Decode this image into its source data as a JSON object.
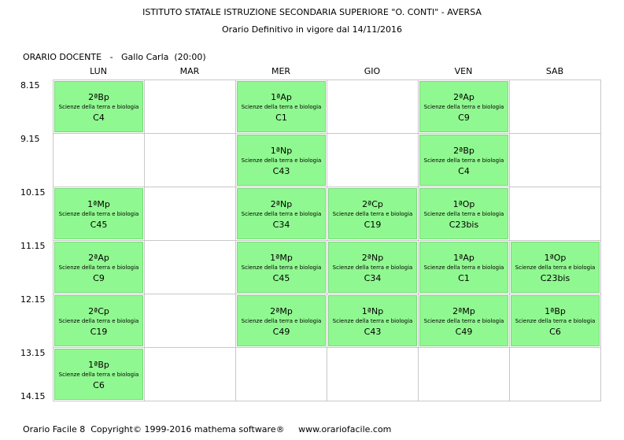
{
  "header": {
    "school": "ISTITUTO STATALE ISTRUZIONE SECONDARIA SUPERIORE \"O. CONTI\" - AVERSA",
    "subtitle": "Orario Definitivo in vigore dal 14/11/2016"
  },
  "teacher_line": "ORARIO DOCENTE   -   Gallo Carla  (20:00)",
  "days": [
    "LUN",
    "MAR",
    "MER",
    "GIO",
    "VEN",
    "SAB"
  ],
  "times": [
    "8.15",
    "9.15",
    "10.15",
    "11.15",
    "12.15",
    "13.15",
    "14.15"
  ],
  "lessons": [
    {
      "day": 0,
      "slot": 0,
      "class": "2ªBp",
      "subject": "Scienze della terra e biologia",
      "room": "C4"
    },
    {
      "day": 2,
      "slot": 0,
      "class": "1ªAp",
      "subject": "Scienze della terra e biologia",
      "room": "C1"
    },
    {
      "day": 4,
      "slot": 0,
      "class": "2ªAp",
      "subject": "Scienze della terra e biologia",
      "room": "C9"
    },
    {
      "day": 2,
      "slot": 1,
      "class": "1ªNp",
      "subject": "Scienze della terra e biologia",
      "room": "C43"
    },
    {
      "day": 4,
      "slot": 1,
      "class": "2ªBp",
      "subject": "Scienze della terra e biologia",
      "room": "C4"
    },
    {
      "day": 0,
      "slot": 2,
      "class": "1ªMp",
      "subject": "Scienze della terra e biologia",
      "room": "C45"
    },
    {
      "day": 2,
      "slot": 2,
      "class": "2ªNp",
      "subject": "Scienze della terra e biologia",
      "room": "C34"
    },
    {
      "day": 3,
      "slot": 2,
      "class": "2ªCp",
      "subject": "Scienze della terra e biologia",
      "room": "C19"
    },
    {
      "day": 4,
      "slot": 2,
      "class": "1ªOp",
      "subject": "Scienze della terra e biologia",
      "room": "C23bis"
    },
    {
      "day": 0,
      "slot": 3,
      "class": "2ªAp",
      "subject": "Scienze della terra e biologia",
      "room": "C9"
    },
    {
      "day": 2,
      "slot": 3,
      "class": "1ªMp",
      "subject": "Scienze della terra e biologia",
      "room": "C45"
    },
    {
      "day": 3,
      "slot": 3,
      "class": "2ªNp",
      "subject": "Scienze della terra e biologia",
      "room": "C34"
    },
    {
      "day": 4,
      "slot": 3,
      "class": "1ªAp",
      "subject": "Scienze della terra e biologia",
      "room": "C1"
    },
    {
      "day": 5,
      "slot": 3,
      "class": "1ªOp",
      "subject": "Scienze della terra e biologia",
      "room": "C23bis"
    },
    {
      "day": 0,
      "slot": 4,
      "class": "2ªCp",
      "subject": "Scienze della terra e biologia",
      "room": "C19"
    },
    {
      "day": 2,
      "slot": 4,
      "class": "2ªMp",
      "subject": "Scienze della terra e biologia",
      "room": "C49"
    },
    {
      "day": 3,
      "slot": 4,
      "class": "1ªNp",
      "subject": "Scienze della terra e biologia",
      "room": "C43"
    },
    {
      "day": 4,
      "slot": 4,
      "class": "2ªMp",
      "subject": "Scienze della terra e biologia",
      "room": "C49"
    },
    {
      "day": 5,
      "slot": 4,
      "class": "1ªBp",
      "subject": "Scienze della terra e biologia",
      "room": "C6"
    },
    {
      "day": 0,
      "slot": 5,
      "class": "1ªBp",
      "subject": "Scienze della terra e biologia",
      "room": "C6"
    }
  ],
  "footer": "Orario Facile 8  Copyright© 1999-2016 mathema software®     www.orariofacile.com",
  "colors": {
    "lesson_bg": "#90f890",
    "grid": "#c8c8c8"
  }
}
